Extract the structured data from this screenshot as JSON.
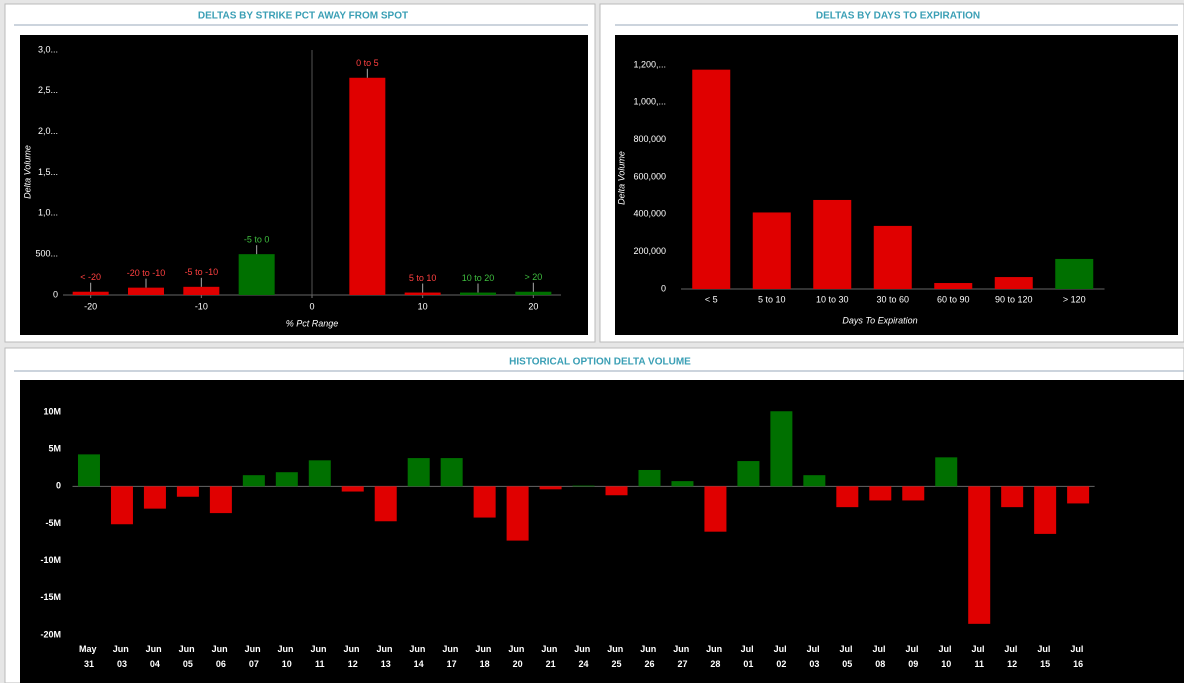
{
  "chart_data": [
    {
      "type": "bar",
      "title": "DELTAS BY STRIKE PCT AWAY FROM SPOT",
      "x_label": "% Pct Range",
      "y_label": "Delta Volume",
      "x": [
        -20,
        -15,
        -10,
        -5,
        5,
        10,
        15,
        20
      ],
      "categories": [
        "< -20",
        "-20 to -10",
        "-5 to -10",
        "-5 to 0",
        "0 to 5",
        "5 to 10",
        "10 to 20",
        "> 20"
      ],
      "values": [
        40,
        90,
        100,
        500,
        2660,
        30,
        30,
        40
      ],
      "colors": [
        "#e00000",
        "#e00000",
        "#e00000",
        "#007000",
        "#e00000",
        "#e00000",
        "#007000",
        "#007000"
      ],
      "xlim": [
        -22.5,
        22.5
      ],
      "xticks": [
        -20,
        -10,
        0,
        10,
        20
      ],
      "ylim": [
        0,
        3000
      ],
      "yticks": [
        0,
        {
          "value": 500,
          "label": "500..."
        },
        {
          "value": 1000,
          "label": "1,0..."
        },
        {
          "value": 1500,
          "label": "1,5..."
        },
        {
          "value": 2000,
          "label": "2,0..."
        },
        {
          "value": 2500,
          "label": "2,5..."
        },
        {
          "value": 3000,
          "label": "3,0..."
        }
      ]
    },
    {
      "type": "bar",
      "title": "DELTAS BY DAYS TO EXPIRATION",
      "x_label": "Days To Expiration",
      "y_label": "Delta Volume",
      "categories": [
        "< 5",
        "5 to 10",
        "10 to 30",
        "30 to 60",
        "60 to 90",
        "90 to 120",
        "> 120"
      ],
      "values": [
        1175000,
        410000,
        477000,
        338000,
        32000,
        64000,
        161000
      ],
      "colors": [
        "#e00000",
        "#e00000",
        "#e00000",
        "#e00000",
        "#e00000",
        "#e00000",
        "#007000"
      ],
      "ylim": [
        0,
        1200000
      ],
      "yticks": [
        0,
        {
          "value": 200000,
          "label": "200,000"
        },
        {
          "value": 400000,
          "label": "400,000"
        },
        {
          "value": 600000,
          "label": "600,000"
        },
        {
          "value": 800000,
          "label": "800,000"
        },
        {
          "value": 1000000,
          "label": "1,000,..."
        },
        {
          "value": 1200000,
          "label": "1,200,..."
        }
      ]
    },
    {
      "type": "bar",
      "title": "HISTORICAL OPTION DELTA VOLUME",
      "categories": [
        "May 31",
        "Jun 03",
        "Jun 04",
        "Jun 05",
        "Jun 06",
        "Jun 07",
        "Jun 10",
        "Jun 11",
        "Jun 12",
        "Jun 13",
        "Jun 14",
        "Jun 17",
        "Jun 18",
        "Jun 20",
        "Jun 21",
        "Jun 24",
        "Jun 25",
        "Jun 26",
        "Jun 27",
        "Jun 28",
        "Jul 01",
        "Jul 02",
        "Jul 03",
        "Jul 05",
        "Jul 08",
        "Jul 09",
        "Jul 10",
        "Jul 11",
        "Jul 12",
        "Jul 15",
        "Jul 16"
      ],
      "values": [
        4300000,
        -5100000,
        -3000000,
        -1400000,
        -3600000,
        1500000,
        1900000,
        3500000,
        -700000,
        -4700000,
        3800000,
        3800000,
        -4200000,
        -7300000,
        -400000,
        100000,
        -1200000,
        2200000,
        700000,
        -6100000,
        3400000,
        10100000,
        1500000,
        -2800000,
        -1900000,
        -1900000,
        3900000,
        -18500000,
        -2800000,
        -6400000,
        -2300000
      ],
      "color_positive": "#007000",
      "color_negative": "#e00000",
      "ylim": [
        -20000000,
        10000000
      ],
      "yticks": [
        {
          "value": 10000000,
          "label": "10M"
        },
        {
          "value": 5000000,
          "label": "5M"
        },
        0,
        {
          "value": -5000000,
          "label": "-5M"
        },
        {
          "value": -10000000,
          "label": "-10M"
        },
        {
          "value": -15000000,
          "label": "-15M"
        },
        {
          "value": -20000000,
          "label": "-20M"
        }
      ]
    }
  ]
}
